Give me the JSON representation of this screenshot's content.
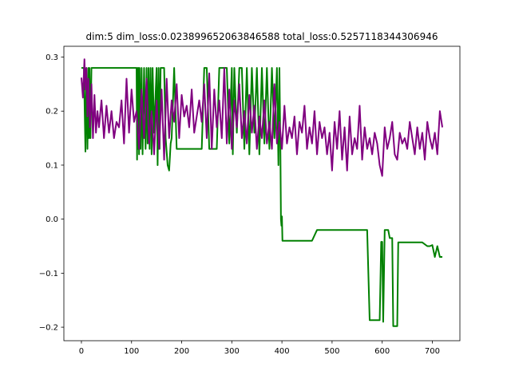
{
  "chart_data": {
    "type": "line",
    "title": "dim:5 dim_loss:0.023899652063846588 total_loss:0.5257118344306946",
    "xlabel": "",
    "ylabel": "",
    "xlim": [
      -35,
      755
    ],
    "ylim": [
      -0.225,
      0.32
    ],
    "xticks": [
      0,
      100,
      200,
      300,
      400,
      500,
      600,
      700
    ],
    "yticks": [
      -0.2,
      -0.1,
      0.0,
      0.1,
      0.2,
      0.3
    ],
    "ytick_labels": [
      "−0.2",
      "−0.1",
      "0.0",
      "0.1",
      "0.2",
      "0.3"
    ],
    "grid": false,
    "series": [
      {
        "color": "#008000",
        "x": [
          0,
          5,
          8,
          10,
          12,
          14,
          15,
          16,
          18,
          20,
          22,
          25,
          110,
          111,
          112,
          113,
          114,
          115,
          116,
          118,
          120,
          122,
          125,
          128,
          130,
          132,
          134,
          136,
          138,
          140,
          142,
          145,
          150,
          152,
          154,
          156,
          158,
          160,
          162,
          165,
          168,
          172,
          175,
          178,
          180,
          185,
          190,
          195,
          200,
          205,
          210,
          215,
          220,
          225,
          230,
          235,
          240,
          245,
          250,
          255,
          260,
          265,
          270,
          275,
          280,
          290,
          295,
          300,
          302,
          305,
          310,
          315,
          320,
          325,
          330,
          335,
          340,
          345,
          350,
          355,
          360,
          365,
          370,
          375,
          380,
          385,
          390,
          393,
          395,
          397,
          398,
          399,
          400,
          401,
          402,
          405,
          410,
          420,
          440,
          460,
          470,
          480,
          500,
          520,
          540,
          560,
          570,
          575,
          580,
          590,
          595,
          598,
          600,
          602,
          605,
          608,
          610,
          612,
          615,
          618,
          620,
          622,
          625,
          628,
          630,
          632,
          635,
          640,
          660,
          680,
          690,
          695,
          700,
          705,
          710,
          715,
          720
        ],
        "values": [
          0.28,
          0.28,
          0.125,
          0.28,
          0.13,
          0.28,
          0.15,
          0.28,
          0.15,
          0.28,
          0.28,
          0.28,
          0.28,
          0.11,
          0.28,
          0.13,
          0.28,
          0.12,
          0.28,
          0.13,
          0.28,
          0.12,
          0.28,
          0.13,
          0.28,
          0.14,
          0.28,
          0.13,
          0.28,
          0.12,
          0.28,
          0.16,
          0.28,
          0.1,
          0.28,
          0.13,
          0.28,
          0.28,
          0.28,
          0.28,
          0.15,
          0.1,
          0.09,
          0.14,
          0.15,
          0.28,
          0.13,
          0.13,
          0.13,
          0.13,
          0.13,
          0.13,
          0.13,
          0.13,
          0.13,
          0.13,
          0.13,
          0.28,
          0.28,
          0.13,
          0.13,
          0.13,
          0.13,
          0.28,
          0.28,
          0.28,
          0.14,
          0.28,
          0.12,
          0.28,
          0.16,
          0.28,
          0.28,
          0.13,
          0.28,
          0.12,
          0.28,
          0.16,
          0.28,
          0.12,
          0.28,
          0.14,
          0.28,
          0.13,
          0.28,
          0.15,
          0.28,
          0.1,
          0.28,
          0.12,
          0.0,
          -0.012,
          0.005,
          -0.04,
          -0.04,
          -0.04,
          -0.04,
          -0.04,
          -0.04,
          -0.04,
          -0.02,
          -0.02,
          -0.02,
          -0.02,
          -0.02,
          -0.02,
          -0.02,
          -0.187,
          -0.187,
          -0.187,
          -0.187,
          -0.042,
          -0.042,
          -0.19,
          -0.02,
          -0.02,
          -0.02,
          -0.02,
          -0.035,
          -0.035,
          -0.035,
          -0.198,
          -0.198,
          -0.198,
          -0.198,
          -0.043,
          -0.043,
          -0.043,
          -0.043,
          -0.043,
          -0.05,
          -0.05,
          -0.048,
          -0.07,
          -0.05,
          -0.07,
          -0.07
        ]
      },
      {
        "color": "#800080",
        "x": [
          0,
          3,
          6,
          8,
          10,
          12,
          14,
          17,
          20,
          23,
          26,
          29,
          32,
          35,
          40,
          45,
          50,
          55,
          60,
          65,
          70,
          75,
          80,
          85,
          90,
          95,
          100,
          105,
          110,
          115,
          120,
          125,
          130,
          135,
          140,
          145,
          150,
          155,
          160,
          165,
          170,
          175,
          180,
          185,
          190,
          195,
          200,
          205,
          210,
          215,
          220,
          225,
          230,
          235,
          240,
          245,
          250,
          255,
          260,
          265,
          270,
          275,
          280,
          285,
          290,
          295,
          300,
          305,
          310,
          315,
          320,
          325,
          330,
          335,
          340,
          345,
          350,
          355,
          360,
          365,
          370,
          375,
          380,
          385,
          390,
          395,
          400,
          405,
          410,
          415,
          420,
          425,
          430,
          435,
          440,
          445,
          450,
          455,
          460,
          465,
          470,
          475,
          480,
          485,
          490,
          495,
          500,
          505,
          510,
          515,
          520,
          525,
          530,
          535,
          540,
          545,
          550,
          555,
          560,
          565,
          570,
          575,
          580,
          585,
          590,
          595,
          600,
          605,
          610,
          615,
          620,
          625,
          630,
          635,
          640,
          645,
          650,
          655,
          660,
          665,
          670,
          675,
          680,
          685,
          690,
          695,
          700,
          705,
          710,
          715,
          720
        ],
        "values": [
          0.262,
          0.225,
          0.296,
          0.24,
          0.28,
          0.19,
          0.26,
          0.17,
          0.25,
          0.15,
          0.23,
          0.16,
          0.2,
          0.17,
          0.22,
          0.15,
          0.21,
          0.16,
          0.2,
          0.15,
          0.18,
          0.17,
          0.22,
          0.14,
          0.26,
          0.16,
          0.24,
          0.18,
          0.2,
          0.13,
          0.24,
          0.15,
          0.26,
          0.14,
          0.2,
          0.12,
          0.22,
          0.13,
          0.24,
          0.11,
          0.26,
          0.15,
          0.22,
          0.18,
          0.25,
          0.15,
          0.23,
          0.19,
          0.21,
          0.17,
          0.24,
          0.16,
          0.19,
          0.22,
          0.18,
          0.25,
          0.15,
          0.27,
          0.13,
          0.24,
          0.17,
          0.22,
          0.15,
          0.28,
          0.14,
          0.24,
          0.13,
          0.22,
          0.17,
          0.25,
          0.15,
          0.2,
          0.14,
          0.23,
          0.16,
          0.21,
          0.13,
          0.19,
          0.15,
          0.22,
          0.14,
          0.18,
          0.13,
          0.25,
          0.14,
          0.18,
          0.13,
          0.21,
          0.14,
          0.17,
          0.15,
          0.19,
          0.12,
          0.18,
          0.16,
          0.21,
          0.13,
          0.17,
          0.14,
          0.2,
          0.12,
          0.18,
          0.15,
          0.17,
          0.12,
          0.16,
          0.09,
          0.18,
          0.13,
          0.2,
          0.11,
          0.17,
          0.09,
          0.19,
          0.12,
          0.15,
          0.13,
          0.21,
          0.11,
          0.17,
          0.13,
          0.15,
          0.12,
          0.16,
          0.14,
          0.1,
          0.08,
          0.17,
          0.13,
          0.15,
          0.18,
          0.12,
          0.11,
          0.16,
          0.14,
          0.15,
          0.13,
          0.18,
          0.15,
          0.12,
          0.17,
          0.13,
          0.16,
          0.11,
          0.18,
          0.15,
          0.13,
          0.16,
          0.12,
          0.2,
          0.17
        ]
      }
    ]
  }
}
